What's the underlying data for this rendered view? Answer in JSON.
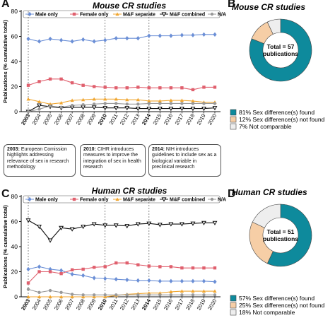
{
  "panels": {
    "A": {
      "letter": "A",
      "title": "Mouse CR studies",
      "ylabel": "Publications (% cumulative total)"
    },
    "B": {
      "letter": "B",
      "title": "Mouse CR studies",
      "center_label": [
        "Total = 57",
        "publications"
      ],
      "legend": [
        "81%  Sex difference(s) found",
        "12%  Sex difference(s) not found",
        "  7%  Not comparable"
      ]
    },
    "C": {
      "letter": "C",
      "title": "Human CR studies",
      "ylabel": "Publications (% cumulative total)"
    },
    "D": {
      "letter": "D",
      "title": "Human CR studies",
      "center_label": [
        "Total = 51",
        "publications"
      ],
      "legend": [
        "57%  Sex difference(s) found",
        "25%  Sex difference(s) not found",
        "18%  Not comparable"
      ]
    }
  },
  "timeline": [
    {
      "year": "2003",
      "text": "European Comission highlights addressing relevance of sex in research methodology"
    },
    {
      "year": "2010",
      "text": "CIHR introduces measures to improve the integration of sex in health research"
    },
    {
      "year": "2014",
      "text": "NIH introduces guidelines to include sex as a biological variable in preclinical research"
    }
  ],
  "colors": {
    "male": "#6b8fd6",
    "female": "#e0606e",
    "separate": "#f0a630",
    "combined": "#111111",
    "na": "#999999",
    "found": "#0e8a9c",
    "not_found": "#f6ceA6",
    "not_comparable": "#eeeeee"
  },
  "chart_data": [
    {
      "type": "line",
      "panel": "A",
      "title": "Mouse CR studies",
      "ylabel": "Publications (% cumulative total)",
      "x": [
        "2003",
        "2004",
        "2005",
        "2006",
        "2007",
        "2008",
        "2009",
        "2010",
        "2011",
        "2012",
        "2013",
        "2014",
        "2015",
        "2016",
        "2017",
        "2018",
        "2019",
        "2020"
      ],
      "bold_x": [
        "2003",
        "2010",
        "2014"
      ],
      "ylim": [
        0,
        80
      ],
      "yticks": [
        0,
        20,
        40,
        60,
        80
      ],
      "series": [
        {
          "name": "Male only",
          "key": "male",
          "marker": "diamond",
          "values": [
            58,
            56,
            58,
            57,
            56,
            57.5,
            56,
            57,
            58.5,
            58.5,
            58.5,
            60.5,
            60.5,
            60.5,
            61,
            61,
            61.5,
            61.5
          ]
        },
        {
          "name": "Female only",
          "key": "female",
          "marker": "square",
          "values": [
            21,
            24,
            26,
            26,
            23,
            21,
            20,
            19.5,
            19,
            19,
            19.5,
            19,
            19,
            19,
            19,
            17.5,
            19.5,
            19.5
          ]
        },
        {
          "name": "M&F separate",
          "key": "separate",
          "marker": "triangle",
          "values": [
            10,
            8,
            6,
            7,
            9,
            9.5,
            10,
            10,
            10,
            9.5,
            9.5,
            8.5,
            8.5,
            9,
            9,
            8.5,
            7.5,
            7.5
          ]
        },
        {
          "name": "M&F combined",
          "key": "combined",
          "marker": "triangle-down",
          "values": [
            0,
            5,
            4,
            3,
            3.5,
            3.5,
            3.5,
            3,
            3,
            3,
            2.5,
            2.5,
            2.5,
            2.5,
            2.5,
            2.5,
            2.5,
            3
          ]
        },
        {
          "name": "N/A",
          "key": "na",
          "marker": "circle",
          "values": [
            0,
            2,
            4.5,
            3.5,
            5,
            5.5,
            6,
            6.5,
            6.5,
            6,
            6,
            6.5,
            6.5,
            6.5,
            6.5,
            6.5,
            6.5,
            6.5
          ]
        }
      ]
    },
    {
      "type": "pie",
      "panel": "B",
      "title": "Mouse CR studies",
      "categories": [
        "Sex difference(s) found",
        "Sex difference(s) not found",
        "Not comparable"
      ],
      "values": [
        81,
        12,
        7
      ]
    },
    {
      "type": "line",
      "panel": "C",
      "title": "Human CR studies",
      "ylabel": "Publications (% cumulative total)",
      "x": [
        "2003",
        "2004",
        "2005",
        "2006",
        "2007",
        "2008",
        "2009",
        "2010",
        "2011",
        "2012",
        "2013",
        "2014",
        "2015",
        "2016",
        "2017",
        "2018",
        "2019",
        "2020"
      ],
      "bold_x": [
        "2003",
        "2010",
        "2014"
      ],
      "ylim": [
        0,
        80
      ],
      "yticks": [
        0,
        20,
        40,
        60,
        80
      ],
      "series": [
        {
          "name": "Male only",
          "key": "male",
          "marker": "diamond",
          "values": [
            22,
            24,
            22,
            21,
            18,
            17,
            15,
            14.5,
            14,
            13.5,
            13,
            13,
            12.5,
            12.5,
            12.5,
            12.5,
            12.5,
            12
          ]
        },
        {
          "name": "Female only",
          "key": "female",
          "marker": "square",
          "values": [
            11,
            20,
            20,
            18.5,
            21.5,
            22,
            23.5,
            24,
            27,
            27,
            25.5,
            24.5,
            24,
            24,
            23,
            23,
            23,
            23
          ]
        },
        {
          "name": "M&F separate",
          "key": "separate",
          "marker": "triangle",
          "values": [
            0,
            0,
            0,
            0,
            0,
            0,
            0,
            0,
            1,
            2,
            2.5,
            3,
            3,
            4,
            4.5,
            4.5,
            4.5,
            4.5
          ]
        },
        {
          "name": "M&F combined",
          "key": "combined",
          "marker": "triangle-down",
          "values": [
            61,
            56,
            45,
            55,
            54,
            56,
            58,
            57,
            57,
            56.5,
            58,
            58.5,
            57.5,
            58,
            58,
            58.5,
            59,
            59
          ]
        },
        {
          "name": "N/A",
          "key": "na",
          "marker": "circle",
          "values": [
            6,
            3.5,
            5,
            3.5,
            2,
            1.5,
            1.5,
            1.5,
            1.5,
            1.5,
            1.5,
            1.5,
            1.5,
            1.5,
            1.5,
            1.5,
            1.5,
            1.5
          ]
        }
      ]
    },
    {
      "type": "pie",
      "panel": "D",
      "title": "Human CR studies",
      "categories": [
        "Sex difference(s) found",
        "Sex difference(s) not found",
        "Not comparable"
      ],
      "values": [
        57,
        25,
        18
      ]
    }
  ]
}
